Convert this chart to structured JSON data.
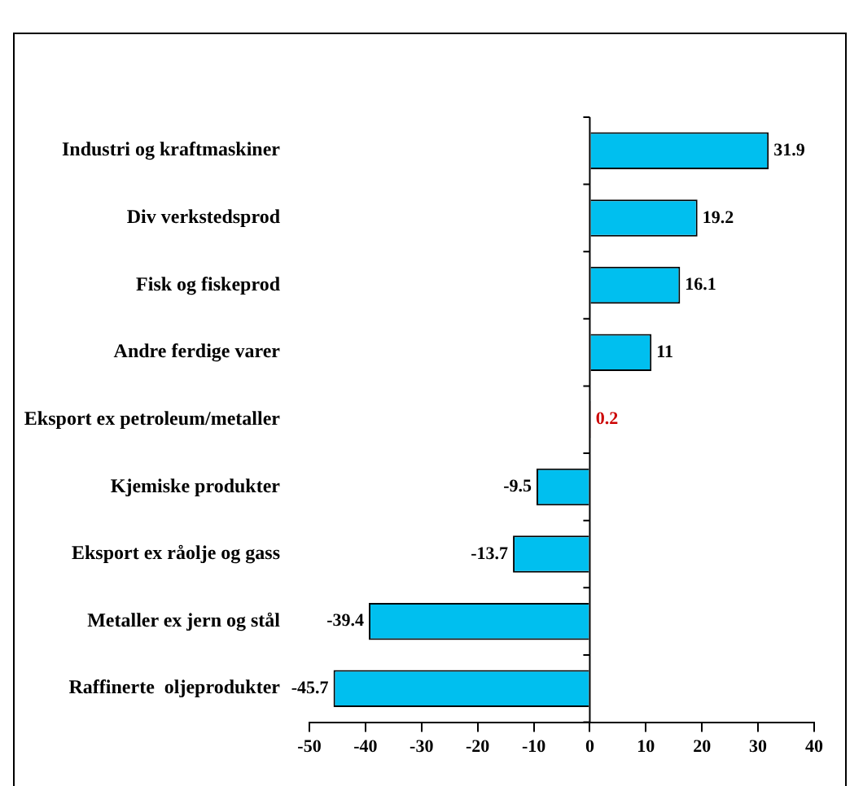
{
  "chart_data": {
    "type": "bar",
    "orientation": "horizontal",
    "categories": [
      "Industri og kraftmaskiner",
      "Div verkstedsprod",
      "Fisk og fiskeprod",
      "Andre ferdige varer",
      "Eksport ex petroleum/metaller",
      "Kjemiske produkter",
      "Eksport ex råolje og gass",
      "Metaller ex jern og stål",
      "Raffinerte  oljeprodukter"
    ],
    "values": [
      31.9,
      19.2,
      16.1,
      11,
      0.2,
      -9.5,
      -13.7,
      -39.4,
      -45.7
    ],
    "color": "#00bfef",
    "colors": [
      "#00bfef",
      "#00bfef",
      "#00bfef",
      "#00bfef",
      "#cc0000",
      "#00bfef",
      "#00bfef",
      "#00bfef",
      "#00bfef"
    ],
    "xlim": [
      -50,
      40
    ],
    "xticks": [
      -50,
      -40,
      -30,
      -20,
      -10,
      0,
      10,
      20,
      30,
      40
    ],
    "data_labels": true,
    "legend": false
  }
}
